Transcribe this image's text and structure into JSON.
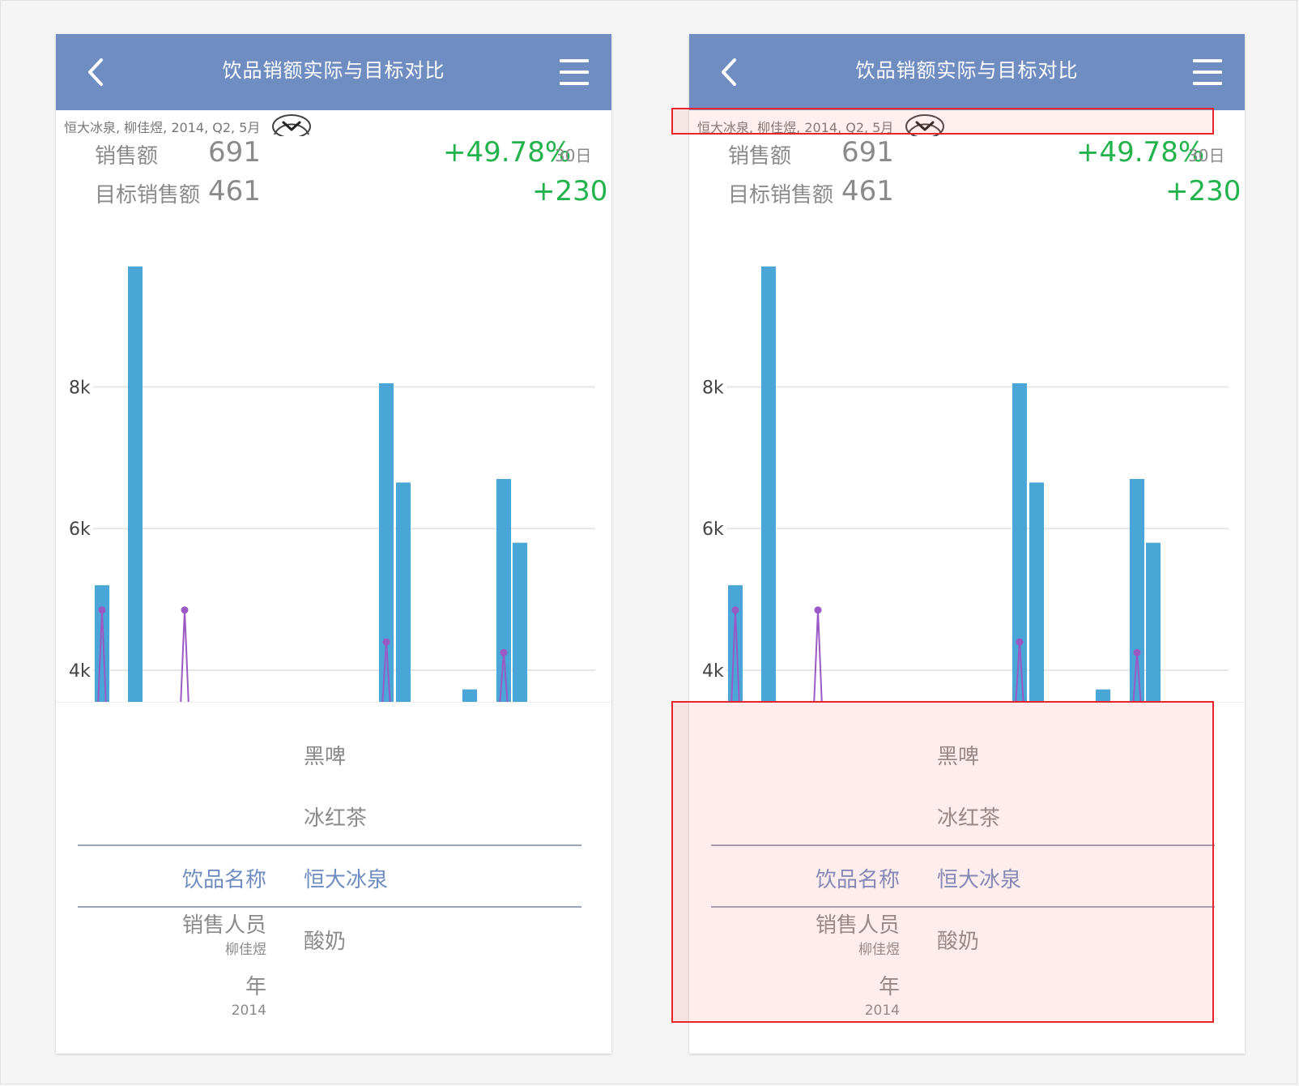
{
  "header": {
    "title": "饮品销额实际与目标对比"
  },
  "filter": {
    "text": "恒大冰泉, 柳佳煜, 2014, Q2, 5月"
  },
  "stats": {
    "sales_label": "销售额",
    "sales_value": "691",
    "growth_pct": "+49.78%",
    "period": "30日",
    "target_label": "目标销售额",
    "target_value": "461",
    "diff": "+230"
  },
  "colors": {
    "titlebar": "#6f8dc1",
    "bar": "#4aa6d6",
    "line": "#9b59c5",
    "positive": "#22b34c",
    "highlight": "#e8232b"
  },
  "chart_data": {
    "type": "bar",
    "ytick_labels": [
      "8k",
      "6k",
      "4k"
    ],
    "yticks": [
      8000,
      6000,
      4000
    ],
    "ylim": [
      3600,
      9800
    ],
    "series": [
      {
        "values": [
          5200,
          9700,
          null,
          null,
          8050,
          6650,
          3730,
          6700,
          5800
        ]
      },
      {
        "values": [
          4850,
          null,
          4850,
          null,
          4400,
          null,
          null,
          4250,
          null
        ]
      }
    ]
  },
  "picker": {
    "col_items": [
      "黑啤",
      "冰红茶",
      "恒大冰泉",
      "酸奶"
    ],
    "selected": "恒大冰泉",
    "dimensions": [
      {
        "label": "饮品名称",
        "value": ""
      },
      {
        "label": "销售人员",
        "value": "柳佳煜"
      },
      {
        "label": "年",
        "value": "2014"
      }
    ]
  },
  "icons": {
    "back": "chevron-left-icon",
    "menu": "hamburger-menu-icon",
    "dropdown": "chevron-down-circle-icon"
  }
}
